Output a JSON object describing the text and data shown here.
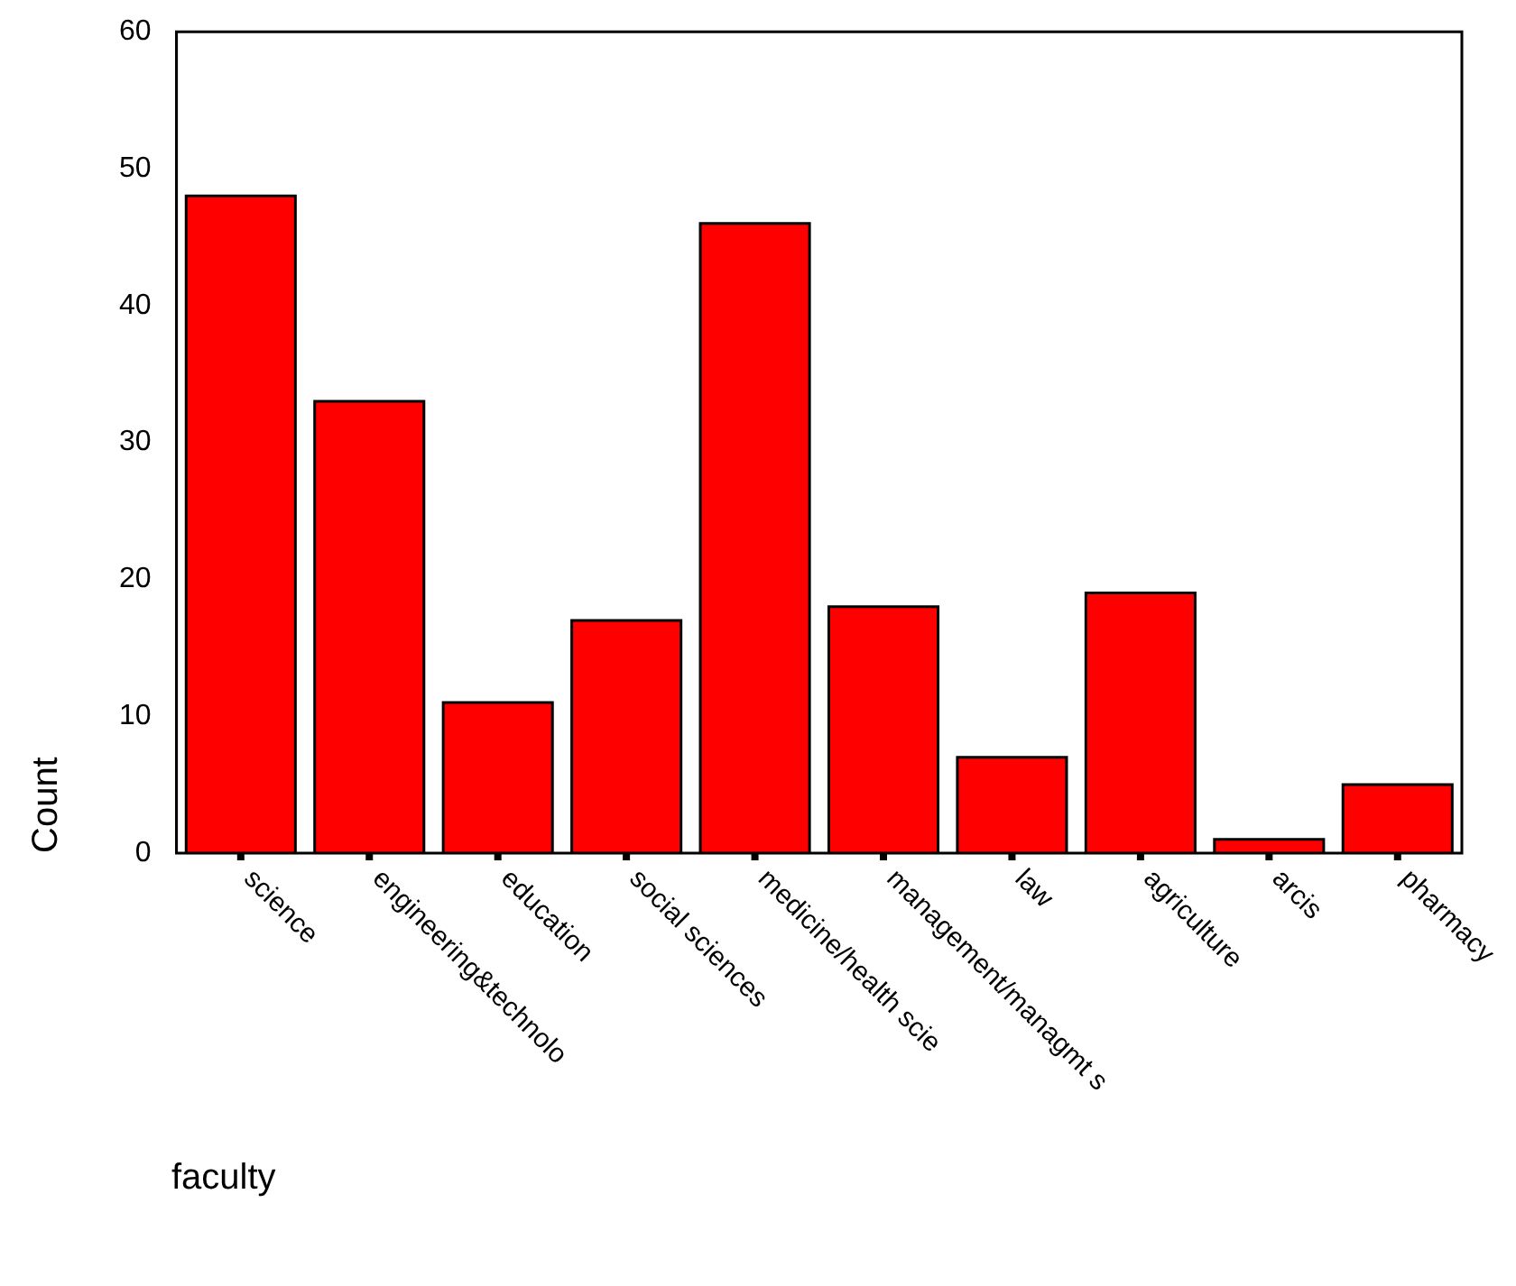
{
  "chart_data": {
    "type": "bar",
    "xlabel": "faculty",
    "ylabel": "Count",
    "categories": [
      "science",
      "engineering&technolo",
      "education",
      "social sciences",
      "medicine/health scie",
      "management/managmt s",
      "law",
      "agriculture",
      "arcis",
      "pharmacy"
    ],
    "values": [
      48,
      33,
      11,
      17,
      46,
      18,
      7,
      19,
      1,
      5
    ],
    "color": "#ff0000",
    "ylim": [
      0,
      60
    ],
    "yticks": [
      0,
      10,
      20,
      30,
      40,
      50,
      60
    ],
    "grid": false,
    "legend": false
  }
}
